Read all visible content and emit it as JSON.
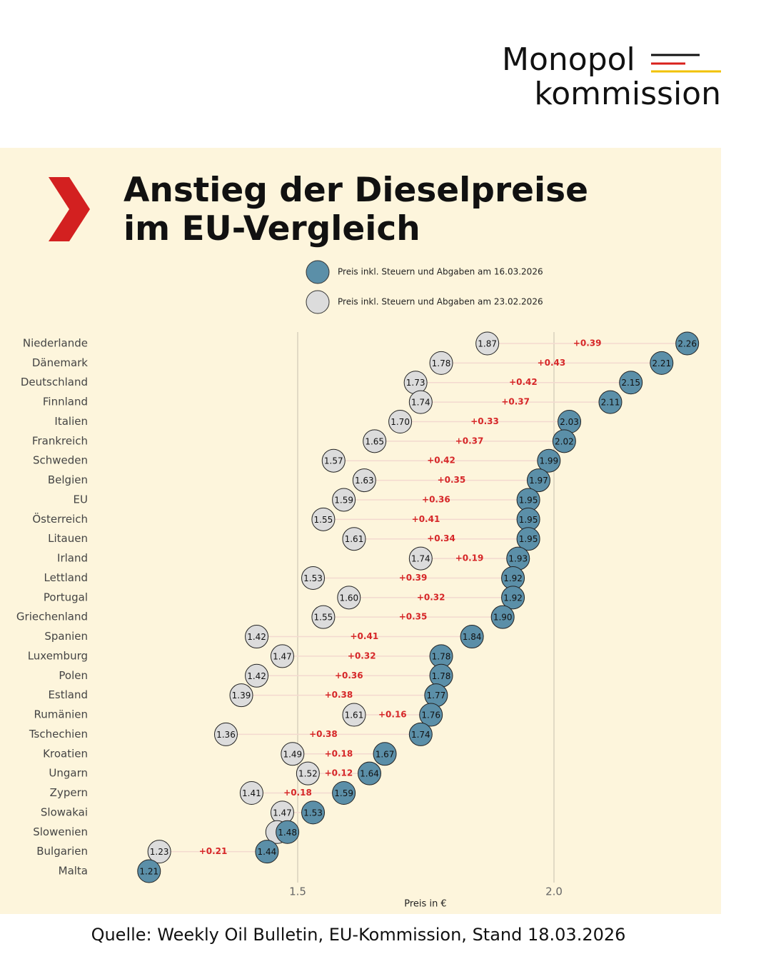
{
  "logo": {
    "line1": "Monopol",
    "line2": "kommission"
  },
  "chart_data": {
    "type": "dumbbell",
    "title": "Anstieg der Dieselpreise im EU-Vergleich",
    "categories": [
      "Niederlande",
      "Dänemark",
      "Deutschland",
      "Finnland",
      "Italien",
      "Frankreich",
      "Schweden",
      "Belgien",
      "EU",
      "Österreich",
      "Litauen",
      "Irland",
      "Lettland",
      "Portugal",
      "Griechenland",
      "Spanien",
      "Luxemburg",
      "Polen",
      "Estland",
      "Rumänien",
      "Tschechien",
      "Kroatien",
      "Ungarn",
      "Zypern",
      "Slowakai",
      "Slowenien",
      "Bulgarien",
      "Malta"
    ],
    "series": [
      {
        "name": "Preis inkl. Steuern und Abgaben am 16.03.2026",
        "color": "#5b8fa8",
        "values": [
          2.26,
          2.21,
          2.15,
          2.11,
          2.03,
          2.02,
          1.99,
          1.97,
          1.95,
          1.95,
          1.95,
          1.93,
          1.92,
          1.92,
          1.9,
          1.84,
          1.78,
          1.78,
          1.77,
          1.76,
          1.74,
          1.67,
          1.64,
          1.59,
          1.53,
          1.48,
          1.44,
          1.21
        ],
        "value_labels": [
          "2.26",
          "2.21",
          "2.15",
          "2.11",
          "2.03",
          "2.02",
          "1.99",
          "1.97",
          "1.95",
          "1.95",
          "1.95",
          "1.93",
          "1.92",
          "1.92",
          "1.90",
          "1.84",
          "1.78",
          "1.78",
          "1.77",
          "1.76",
          "1.74",
          "1.67",
          "1.64",
          "1.59",
          "1.53",
          "1.48",
          "1.44",
          "1.21"
        ]
      },
      {
        "name": "Preis inkl. Steuern und Abgaben am 23.02.2026",
        "color": "#dcdcdc",
        "values": [
          1.87,
          1.78,
          1.73,
          1.74,
          1.7,
          1.65,
          1.57,
          1.63,
          1.59,
          1.55,
          1.61,
          1.74,
          1.53,
          1.6,
          1.55,
          1.42,
          1.47,
          1.42,
          1.39,
          1.61,
          1.36,
          1.49,
          1.52,
          1.41,
          1.47,
          1.46,
          1.23,
          null
        ],
        "value_labels": [
          "1.87",
          "1.78",
          "1.73",
          "1.74",
          "1.70",
          "1.65",
          "1.57",
          "1.63",
          "1.59",
          "1.55",
          "1.61",
          "1.74",
          "1.53",
          "1.60",
          "1.55",
          "1.42",
          "1.47",
          "1.42",
          "1.39",
          "1.61",
          "1.36",
          "1.49",
          "1.52",
          "1.41",
          "1.47",
          null,
          "1.23",
          null
        ]
      }
    ],
    "changes": [
      0.39,
      0.43,
      0.42,
      0.37,
      0.33,
      0.37,
      0.42,
      0.35,
      0.36,
      0.41,
      0.34,
      0.19,
      0.39,
      0.32,
      0.35,
      0.41,
      0.32,
      0.36,
      0.38,
      0.16,
      0.38,
      0.18,
      0.12,
      0.18,
      null,
      null,
      0.21,
      null
    ],
    "change_labels": [
      "+0.39",
      "+0.43",
      "+0.42",
      "+0.37",
      "+0.33",
      "+0.37",
      "+0.42",
      "+0.35",
      "+0.36",
      "+0.41",
      "+0.34",
      "+0.19",
      "+0.39",
      "+0.32",
      "+0.35",
      "+0.41",
      "+0.32",
      "+0.36",
      "+0.38",
      "+0.16",
      "+0.38",
      "+0.18",
      "+0.12",
      "+0.18",
      null,
      null,
      "+0.21",
      null
    ],
    "change_color": "#d62728",
    "xlim": [
      1.2,
      2.3
    ],
    "xticks": [
      1.5,
      {
        "value": 2.0,
        "label": "2.0"
      }
    ],
    "xlabel": "Preis in €",
    "grid": true
  },
  "source": "Quelle: Weekly Oil Bulletin, EU-Kommission, Stand 18.03.2026"
}
